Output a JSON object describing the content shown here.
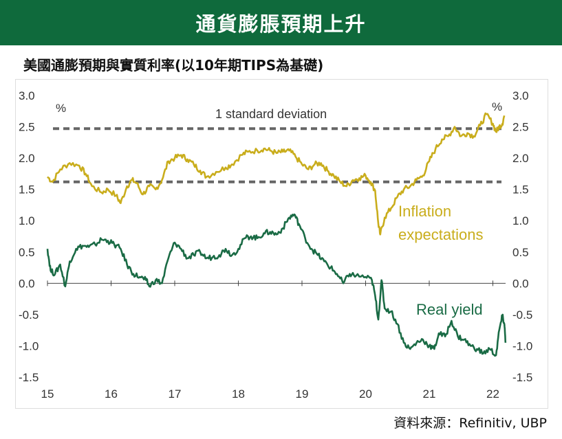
{
  "header": {
    "title": "通貨膨脹預期上升"
  },
  "chart_title": "美國通膨預期與實質利率(以10年期TIPS為基礎)",
  "source": "資料來源：Refinitiv, UBP",
  "colors": {
    "banner": "#0f6a3c",
    "inflation": "#c9ad1c",
    "real_yield": "#1a6b45",
    "deviation": "#666666"
  },
  "chart_data": {
    "type": "line",
    "y_unit_left": "%",
    "y_unit_right": "%",
    "ylim": [
      -1.5,
      3.0
    ],
    "yticks": [
      "3.0",
      "2.5",
      "2.0",
      "1.5",
      "1.0",
      "0.5",
      "0.0",
      "-0.5",
      "-1.0",
      "-1.5"
    ],
    "xlim": [
      2015,
      2022.2
    ],
    "xticks": [
      {
        "label": "15",
        "x": 2015
      },
      {
        "label": "16",
        "x": 2016
      },
      {
        "label": "17",
        "x": 2017
      },
      {
        "label": "18",
        "x": 2018
      },
      {
        "label": "19",
        "x": 2019
      },
      {
        "label": "20",
        "x": 2020
      },
      {
        "label": "21",
        "x": 2021
      },
      {
        "label": "22",
        "x": 2022
      }
    ],
    "annotation": "1 standard deviation",
    "deviation_lines": [
      2.47,
      1.62
    ],
    "series": [
      {
        "name": "Inflation expectations",
        "label_lines": [
          "Inflation",
          "expectations"
        ],
        "points": [
          [
            2015.0,
            1.7
          ],
          [
            2015.08,
            1.62
          ],
          [
            2015.2,
            1.82
          ],
          [
            2015.35,
            1.92
          ],
          [
            2015.5,
            1.88
          ],
          [
            2015.6,
            1.75
          ],
          [
            2015.7,
            1.55
          ],
          [
            2015.85,
            1.45
          ],
          [
            2015.95,
            1.5
          ],
          [
            2016.08,
            1.4
          ],
          [
            2016.15,
            1.28
          ],
          [
            2016.25,
            1.55
          ],
          [
            2016.33,
            1.65
          ],
          [
            2016.4,
            1.6
          ],
          [
            2016.5,
            1.42
          ],
          [
            2016.6,
            1.55
          ],
          [
            2016.7,
            1.5
          ],
          [
            2016.8,
            1.65
          ],
          [
            2016.9,
            1.95
          ],
          [
            2017.0,
            2.0
          ],
          [
            2017.1,
            2.05
          ],
          [
            2017.2,
            1.98
          ],
          [
            2017.3,
            1.9
          ],
          [
            2017.4,
            1.8
          ],
          [
            2017.5,
            1.7
          ],
          [
            2017.65,
            1.78
          ],
          [
            2017.8,
            1.85
          ],
          [
            2017.9,
            1.9
          ],
          [
            2018.05,
            2.05
          ],
          [
            2018.15,
            2.1
          ],
          [
            2018.3,
            2.12
          ],
          [
            2018.4,
            2.15
          ],
          [
            2018.5,
            2.12
          ],
          [
            2018.6,
            2.08
          ],
          [
            2018.7,
            2.1
          ],
          [
            2018.8,
            2.12
          ],
          [
            2018.9,
            2.02
          ],
          [
            2019.0,
            1.9
          ],
          [
            2019.1,
            1.82
          ],
          [
            2019.2,
            1.9
          ],
          [
            2019.3,
            1.92
          ],
          [
            2019.4,
            1.8
          ],
          [
            2019.5,
            1.72
          ],
          [
            2019.6,
            1.62
          ],
          [
            2019.7,
            1.55
          ],
          [
            2019.8,
            1.65
          ],
          [
            2019.9,
            1.68
          ],
          [
            2020.0,
            1.72
          ],
          [
            2020.08,
            1.62
          ],
          [
            2020.15,
            1.48
          ],
          [
            2020.2,
            0.95
          ],
          [
            2020.23,
            0.78
          ],
          [
            2020.3,
            1.05
          ],
          [
            2020.4,
            1.2
          ],
          [
            2020.5,
            1.38
          ],
          [
            2020.6,
            1.5
          ],
          [
            2020.7,
            1.55
          ],
          [
            2020.8,
            1.65
          ],
          [
            2020.9,
            1.72
          ],
          [
            2021.0,
            1.95
          ],
          [
            2021.1,
            2.15
          ],
          [
            2021.2,
            2.3
          ],
          [
            2021.3,
            2.35
          ],
          [
            2021.4,
            2.5
          ],
          [
            2021.5,
            2.35
          ],
          [
            2021.6,
            2.4
          ],
          [
            2021.7,
            2.35
          ],
          [
            2021.8,
            2.52
          ],
          [
            2021.9,
            2.7
          ],
          [
            2022.0,
            2.55
          ],
          [
            2022.05,
            2.42
          ],
          [
            2022.1,
            2.5
          ],
          [
            2022.15,
            2.55
          ],
          [
            2022.18,
            2.68
          ]
        ]
      },
      {
        "name": "Real yield",
        "label_lines": [
          "Real yield"
        ],
        "points": [
          [
            2015.0,
            0.55
          ],
          [
            2015.05,
            0.2
          ],
          [
            2015.12,
            0.15
          ],
          [
            2015.2,
            0.3
          ],
          [
            2015.28,
            -0.05
          ],
          [
            2015.35,
            0.35
          ],
          [
            2015.45,
            0.55
          ],
          [
            2015.55,
            0.6
          ],
          [
            2015.65,
            0.58
          ],
          [
            2015.75,
            0.62
          ],
          [
            2015.85,
            0.7
          ],
          [
            2015.95,
            0.68
          ],
          [
            2016.05,
            0.62
          ],
          [
            2016.15,
            0.55
          ],
          [
            2016.25,
            0.3
          ],
          [
            2016.35,
            0.15
          ],
          [
            2016.45,
            0.1
          ],
          [
            2016.55,
            0.05
          ],
          [
            2016.6,
            -0.05
          ],
          [
            2016.7,
            0.05
          ],
          [
            2016.8,
            0.0
          ],
          [
            2016.9,
            0.4
          ],
          [
            2017.0,
            0.65
          ],
          [
            2017.1,
            0.55
          ],
          [
            2017.2,
            0.4
          ],
          [
            2017.3,
            0.45
          ],
          [
            2017.4,
            0.5
          ],
          [
            2017.5,
            0.4
          ],
          [
            2017.6,
            0.42
          ],
          [
            2017.7,
            0.45
          ],
          [
            2017.8,
            0.55
          ],
          [
            2017.9,
            0.45
          ],
          [
            2018.0,
            0.55
          ],
          [
            2018.1,
            0.72
          ],
          [
            2018.2,
            0.75
          ],
          [
            2018.3,
            0.72
          ],
          [
            2018.4,
            0.8
          ],
          [
            2018.5,
            0.82
          ],
          [
            2018.6,
            0.78
          ],
          [
            2018.7,
            0.88
          ],
          [
            2018.8,
            1.05
          ],
          [
            2018.88,
            1.1
          ],
          [
            2018.95,
            0.95
          ],
          [
            2019.05,
            0.72
          ],
          [
            2019.15,
            0.55
          ],
          [
            2019.25,
            0.45
          ],
          [
            2019.35,
            0.35
          ],
          [
            2019.45,
            0.25
          ],
          [
            2019.55,
            0.15
          ],
          [
            2019.65,
            0.0
          ],
          [
            2019.75,
            0.15
          ],
          [
            2019.85,
            0.12
          ],
          [
            2020.0,
            0.1
          ],
          [
            2020.1,
            0.05
          ],
          [
            2020.15,
            -0.2
          ],
          [
            2020.2,
            -0.58
          ],
          [
            2020.25,
            0.05
          ],
          [
            2020.3,
            -0.4
          ],
          [
            2020.4,
            -0.45
          ],
          [
            2020.5,
            -0.65
          ],
          [
            2020.6,
            -0.95
          ],
          [
            2020.7,
            -1.05
          ],
          [
            2020.8,
            -0.95
          ],
          [
            2020.9,
            -0.9
          ],
          [
            2021.0,
            -1.0
          ],
          [
            2021.08,
            -1.05
          ],
          [
            2021.15,
            -0.8
          ],
          [
            2021.25,
            -0.85
          ],
          [
            2021.35,
            -0.6
          ],
          [
            2021.45,
            -0.85
          ],
          [
            2021.55,
            -0.9
          ],
          [
            2021.65,
            -1.0
          ],
          [
            2021.75,
            -1.05
          ],
          [
            2021.85,
            -1.12
          ],
          [
            2021.95,
            -1.05
          ],
          [
            2022.05,
            -1.15
          ],
          [
            2022.1,
            -0.75
          ],
          [
            2022.15,
            -0.52
          ],
          [
            2022.18,
            -0.65
          ],
          [
            2022.2,
            -0.95
          ]
        ]
      }
    ],
    "grid": false,
    "legend": "inline-labels"
  }
}
